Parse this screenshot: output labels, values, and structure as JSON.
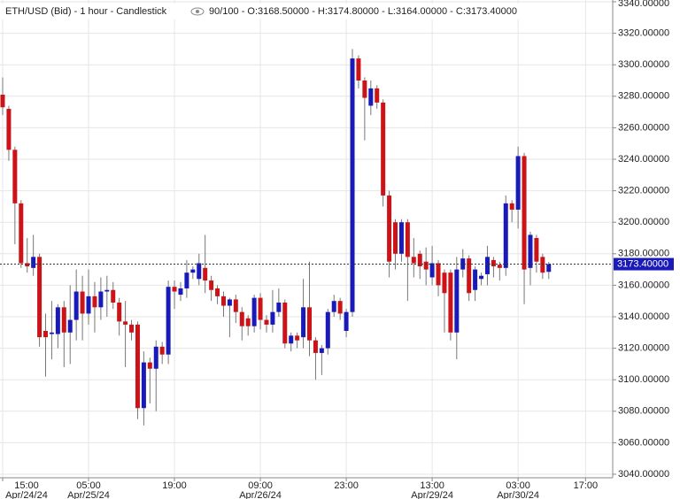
{
  "chart_data": {
    "type": "candlestick",
    "title": "ETH/USD (Bid) - 1 hour - Candlestick",
    "info": "90/100 - O:3168.50000 - H:3174.80000 - L:3164.00000 - C:3173.40000",
    "categories": [
      {
        "time": "15:00",
        "date": "Apr/24/24"
      },
      null,
      null,
      null,
      null,
      null,
      null,
      null,
      null,
      null,
      null,
      null,
      null,
      null,
      {
        "time": "05:00",
        "date": "Apr/25/24"
      },
      null,
      null,
      null,
      null,
      null,
      null,
      null,
      null,
      null,
      null,
      null,
      null,
      null,
      {
        "time": "19:00"
      },
      null,
      null,
      null,
      null,
      null,
      null,
      null,
      null,
      null,
      null,
      null,
      null,
      null,
      {
        "time": "09:00",
        "date": "Apr/26/24"
      },
      null,
      null,
      null,
      null,
      null,
      null,
      null,
      null,
      null,
      null,
      null,
      null,
      null,
      {
        "time": "23:00"
      },
      null,
      null,
      null,
      null,
      null,
      null,
      null,
      null,
      null,
      null,
      null,
      null,
      null,
      {
        "time": "13:00",
        "date": "Apr/29/24"
      },
      null,
      null,
      null,
      null,
      null,
      null,
      null,
      null,
      null,
      null,
      null,
      null,
      null,
      {
        "time": "03:00",
        "date": "Apr/30/24"
      },
      null,
      null,
      null,
      null,
      null,
      null,
      null,
      null,
      null,
      null,
      {
        "time": "17:00"
      }
    ],
    "open": [
      3281,
      3272,
      3246,
      3212,
      3174,
      3171,
      3178,
      3131,
      3129,
      3129,
      3146,
      3130,
      3138,
      3156,
      3142,
      3153,
      3146,
      3156,
      3157,
      3149,
      3137,
      3135,
      3135,
      3082,
      3111,
      3107,
      3121,
      3116,
      3159,
      3154,
      3158,
      3168,
      3164,
      3171,
      3163,
      3158,
      3153,
      3147,
      3151,
      3143,
      3139,
      3134,
      3152,
      3138,
      3135,
      3143,
      3149,
      3123,
      3128,
      3127,
      3146,
      3125,
      3117,
      3120,
      3143,
      3150,
      3131,
      3143,
      3304,
      3290,
      3274,
      3285,
      3276,
      3217,
      3200,
      3180,
      3200,
      3178,
      3180,
      3175,
      3165,
      3174,
      3168,
      3168,
      3130,
      3170,
      3177,
      3157,
      3164,
      3167,
      3176,
      3173,
      3171,
      3212,
      3208,
      3242,
      3171,
      3190,
      3178,
      3168.5,
      null,
      null,
      null,
      null,
      null,
      null
    ],
    "high": [
      3292,
      3274,
      3248,
      3214,
      3190,
      3192,
      3180,
      3142,
      3150,
      3148,
      3150,
      3160,
      3170,
      3166,
      3170,
      3162,
      3165,
      3166,
      3162,
      3152,
      3150,
      3138,
      3137,
      3118,
      3114,
      3125,
      3124,
      3163,
      3163,
      3162,
      3176,
      3172,
      3180,
      3192,
      3166,
      3160,
      3156,
      3152,
      3154,
      3146,
      3141,
      3154,
      3155,
      3141,
      3157,
      3158,
      3151,
      3130,
      3130,
      3164,
      3175,
      3127,
      3122,
      3145,
      3154,
      3152,
      3145,
      3310,
      3306,
      3292,
      3290,
      3287,
      3278,
      3220,
      3202,
      3202,
      3202,
      3190,
      3182,
      3184,
      3185,
      3176,
      3170,
      3170,
      3178,
      3183,
      3179,
      3172,
      3168,
      3185,
      3178,
      3175,
      3217,
      3214,
      3248,
      3244,
      3194,
      3192,
      3180,
      3174.8,
      null,
      null,
      null,
      null,
      null,
      null
    ],
    "low": [
      3268,
      3239,
      3186,
      3171,
      3168,
      3166,
      3121,
      3102,
      3113,
      3120,
      3108,
      3110,
      3125,
      3125,
      3135,
      3130,
      3138,
      3140,
      3145,
      3128,
      3108,
      3125,
      3075,
      3071,
      3085,
      3080,
      3110,
      3110,
      3145,
      3150,
      3152,
      3164,
      3160,
      3155,
      3150,
      3148,
      3140,
      3127,
      3136,
      3125,
      3128,
      3130,
      3132,
      3130,
      3130,
      3140,
      3120,
      3118,
      3120,
      3120,
      3115,
      3100,
      3103,
      3116,
      3140,
      3138,
      3127,
      3140,
      3285,
      3252,
      3268,
      3272,
      3210,
      3165,
      3170,
      3175,
      3150,
      3165,
      3164,
      3160,
      3160,
      3153,
      3130,
      3125,
      3113,
      3165,
      3150,
      3150,
      3160,
      3160,
      3165,
      3163,
      3166,
      3200,
      3196,
      3148,
      3160,
      3168,
      3164,
      3164,
      null,
      null,
      null,
      null,
      null,
      null
    ],
    "close": [
      3273,
      3246,
      3212,
      3174,
      3172,
      3178,
      3127,
      3127,
      3130,
      3146,
      3130,
      3138,
      3156,
      3142,
      3153,
      3146,
      3156,
      3157,
      3149,
      3137,
      3135,
      3130,
      3082,
      3111,
      3107,
      3121,
      3116,
      3159,
      3156,
      3158,
      3168,
      3170,
      3174,
      3163,
      3157,
      3153,
      3147,
      3151,
      3143,
      3134,
      3134,
      3152,
      3138,
      3135,
      3143,
      3149,
      3123,
      3128,
      3125,
      3146,
      3125,
      3117,
      3120,
      3143,
      3150,
      3142,
      3143,
      3304,
      3290,
      3279,
      3285,
      3276,
      3217,
      3175,
      3180,
      3200,
      3178,
      3174,
      3172,
      3170,
      3174,
      3160,
      3155,
      3130,
      3170,
      3177,
      3155,
      3170,
      3166,
      3178,
      3172,
      3171,
      3212,
      3208,
      3242,
      3170,
      3192,
      3175,
      3168,
      3173.4,
      null,
      null,
      null,
      null,
      null,
      null
    ],
    "up_color": "#1a1ab8",
    "down_color": "#cc1418",
    "ylim": [
      3040,
      3340
    ],
    "yticks": [
      {
        "value": 3040,
        "label": "3040.00000"
      },
      {
        "value": 3060,
        "label": "3060.00000"
      },
      {
        "value": 3080,
        "label": "3080.00000"
      },
      {
        "value": 3100,
        "label": "3100.00000"
      },
      {
        "value": 3120,
        "label": "3120.00000"
      },
      {
        "value": 3140,
        "label": "3140.00000"
      },
      {
        "value": 3160,
        "label": "3160.00000"
      },
      {
        "value": 3180,
        "label": "3180.00000"
      },
      {
        "value": 3200,
        "label": "3200.00000"
      },
      {
        "value": 3220,
        "label": "3220.00000"
      },
      {
        "value": 3240,
        "label": "3240.00000"
      },
      {
        "value": 3260,
        "label": "3260.00000"
      },
      {
        "value": 3280,
        "label": "3280.00000"
      },
      {
        "value": 3300,
        "label": "3300.00000"
      },
      {
        "value": 3320,
        "label": "3320.00000"
      },
      {
        "value": 3340,
        "label": "3340.00000"
      }
    ],
    "last": {
      "value": 3173.4,
      "label": "3173.40000"
    },
    "grid": true
  }
}
